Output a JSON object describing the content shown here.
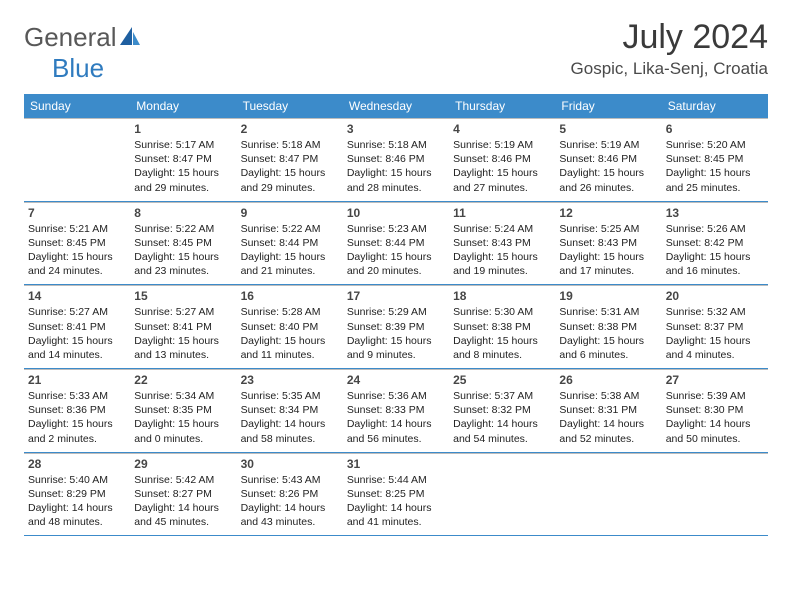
{
  "brand": {
    "part1": "General",
    "part2": "Blue"
  },
  "title": "July 2024",
  "location": "Gospic, Lika-Senj, Croatia",
  "colors": {
    "header_bar": "#3c8bca",
    "header_text": "#ffffff",
    "rule": "#3c8bca",
    "daynum": "#464646",
    "body_text": "#222222",
    "logo_gray": "#585858",
    "logo_blue": "#2f7bbf"
  },
  "dow": [
    "Sunday",
    "Monday",
    "Tuesday",
    "Wednesday",
    "Thursday",
    "Friday",
    "Saturday"
  ],
  "weeks": [
    [
      null,
      {
        "n": "1",
        "sr": "Sunrise: 5:17 AM",
        "ss": "Sunset: 8:47 PM",
        "d1": "Daylight: 15 hours",
        "d2": "and 29 minutes."
      },
      {
        "n": "2",
        "sr": "Sunrise: 5:18 AM",
        "ss": "Sunset: 8:47 PM",
        "d1": "Daylight: 15 hours",
        "d2": "and 29 minutes."
      },
      {
        "n": "3",
        "sr": "Sunrise: 5:18 AM",
        "ss": "Sunset: 8:46 PM",
        "d1": "Daylight: 15 hours",
        "d2": "and 28 minutes."
      },
      {
        "n": "4",
        "sr": "Sunrise: 5:19 AM",
        "ss": "Sunset: 8:46 PM",
        "d1": "Daylight: 15 hours",
        "d2": "and 27 minutes."
      },
      {
        "n": "5",
        "sr": "Sunrise: 5:19 AM",
        "ss": "Sunset: 8:46 PM",
        "d1": "Daylight: 15 hours",
        "d2": "and 26 minutes."
      },
      {
        "n": "6",
        "sr": "Sunrise: 5:20 AM",
        "ss": "Sunset: 8:45 PM",
        "d1": "Daylight: 15 hours",
        "d2": "and 25 minutes."
      }
    ],
    [
      {
        "n": "7",
        "sr": "Sunrise: 5:21 AM",
        "ss": "Sunset: 8:45 PM",
        "d1": "Daylight: 15 hours",
        "d2": "and 24 minutes."
      },
      {
        "n": "8",
        "sr": "Sunrise: 5:22 AM",
        "ss": "Sunset: 8:45 PM",
        "d1": "Daylight: 15 hours",
        "d2": "and 23 minutes."
      },
      {
        "n": "9",
        "sr": "Sunrise: 5:22 AM",
        "ss": "Sunset: 8:44 PM",
        "d1": "Daylight: 15 hours",
        "d2": "and 21 minutes."
      },
      {
        "n": "10",
        "sr": "Sunrise: 5:23 AM",
        "ss": "Sunset: 8:44 PM",
        "d1": "Daylight: 15 hours",
        "d2": "and 20 minutes."
      },
      {
        "n": "11",
        "sr": "Sunrise: 5:24 AM",
        "ss": "Sunset: 8:43 PM",
        "d1": "Daylight: 15 hours",
        "d2": "and 19 minutes."
      },
      {
        "n": "12",
        "sr": "Sunrise: 5:25 AM",
        "ss": "Sunset: 8:43 PM",
        "d1": "Daylight: 15 hours",
        "d2": "and 17 minutes."
      },
      {
        "n": "13",
        "sr": "Sunrise: 5:26 AM",
        "ss": "Sunset: 8:42 PM",
        "d1": "Daylight: 15 hours",
        "d2": "and 16 minutes."
      }
    ],
    [
      {
        "n": "14",
        "sr": "Sunrise: 5:27 AM",
        "ss": "Sunset: 8:41 PM",
        "d1": "Daylight: 15 hours",
        "d2": "and 14 minutes."
      },
      {
        "n": "15",
        "sr": "Sunrise: 5:27 AM",
        "ss": "Sunset: 8:41 PM",
        "d1": "Daylight: 15 hours",
        "d2": "and 13 minutes."
      },
      {
        "n": "16",
        "sr": "Sunrise: 5:28 AM",
        "ss": "Sunset: 8:40 PM",
        "d1": "Daylight: 15 hours",
        "d2": "and 11 minutes."
      },
      {
        "n": "17",
        "sr": "Sunrise: 5:29 AM",
        "ss": "Sunset: 8:39 PM",
        "d1": "Daylight: 15 hours",
        "d2": "and 9 minutes."
      },
      {
        "n": "18",
        "sr": "Sunrise: 5:30 AM",
        "ss": "Sunset: 8:38 PM",
        "d1": "Daylight: 15 hours",
        "d2": "and 8 minutes."
      },
      {
        "n": "19",
        "sr": "Sunrise: 5:31 AM",
        "ss": "Sunset: 8:38 PM",
        "d1": "Daylight: 15 hours",
        "d2": "and 6 minutes."
      },
      {
        "n": "20",
        "sr": "Sunrise: 5:32 AM",
        "ss": "Sunset: 8:37 PM",
        "d1": "Daylight: 15 hours",
        "d2": "and 4 minutes."
      }
    ],
    [
      {
        "n": "21",
        "sr": "Sunrise: 5:33 AM",
        "ss": "Sunset: 8:36 PM",
        "d1": "Daylight: 15 hours",
        "d2": "and 2 minutes."
      },
      {
        "n": "22",
        "sr": "Sunrise: 5:34 AM",
        "ss": "Sunset: 8:35 PM",
        "d1": "Daylight: 15 hours",
        "d2": "and 0 minutes."
      },
      {
        "n": "23",
        "sr": "Sunrise: 5:35 AM",
        "ss": "Sunset: 8:34 PM",
        "d1": "Daylight: 14 hours",
        "d2": "and 58 minutes."
      },
      {
        "n": "24",
        "sr": "Sunrise: 5:36 AM",
        "ss": "Sunset: 8:33 PM",
        "d1": "Daylight: 14 hours",
        "d2": "and 56 minutes."
      },
      {
        "n": "25",
        "sr": "Sunrise: 5:37 AM",
        "ss": "Sunset: 8:32 PM",
        "d1": "Daylight: 14 hours",
        "d2": "and 54 minutes."
      },
      {
        "n": "26",
        "sr": "Sunrise: 5:38 AM",
        "ss": "Sunset: 8:31 PM",
        "d1": "Daylight: 14 hours",
        "d2": "and 52 minutes."
      },
      {
        "n": "27",
        "sr": "Sunrise: 5:39 AM",
        "ss": "Sunset: 8:30 PM",
        "d1": "Daylight: 14 hours",
        "d2": "and 50 minutes."
      }
    ],
    [
      {
        "n": "28",
        "sr": "Sunrise: 5:40 AM",
        "ss": "Sunset: 8:29 PM",
        "d1": "Daylight: 14 hours",
        "d2": "and 48 minutes."
      },
      {
        "n": "29",
        "sr": "Sunrise: 5:42 AM",
        "ss": "Sunset: 8:27 PM",
        "d1": "Daylight: 14 hours",
        "d2": "and 45 minutes."
      },
      {
        "n": "30",
        "sr": "Sunrise: 5:43 AM",
        "ss": "Sunset: 8:26 PM",
        "d1": "Daylight: 14 hours",
        "d2": "and 43 minutes."
      },
      {
        "n": "31",
        "sr": "Sunrise: 5:44 AM",
        "ss": "Sunset: 8:25 PM",
        "d1": "Daylight: 14 hours",
        "d2": "and 41 minutes."
      },
      null,
      null,
      null
    ]
  ]
}
